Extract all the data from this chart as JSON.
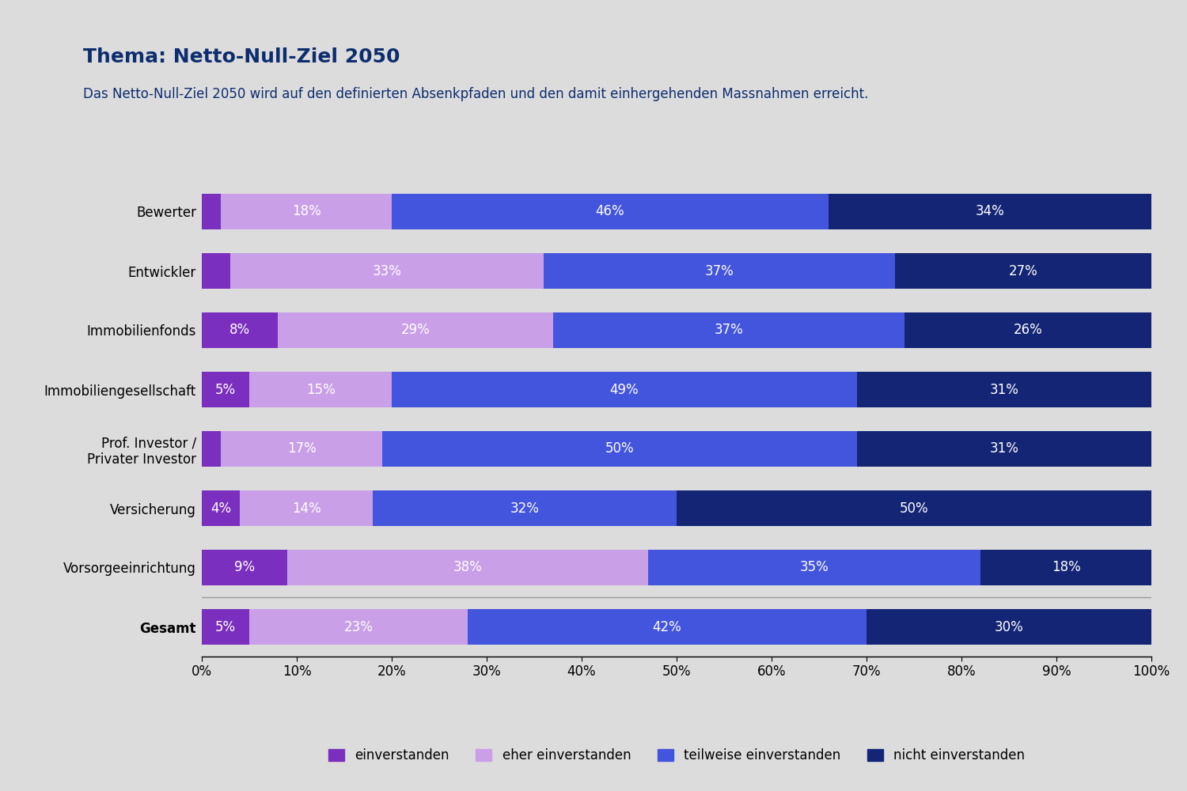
{
  "title": "Thema: Netto-Null-Ziel 2050",
  "subtitle": "Das Netto-Null-Ziel 2050 wird auf den definierten Absenkpfaden und den damit einhergehenden Massnahmen erreicht.",
  "title_color": "#0d2d6e",
  "subtitle_color": "#0d2d6e",
  "background_color": "#dcdcdc",
  "categories": [
    "Bewerter",
    "Entwickler",
    "Immobilienfonds",
    "Immobiliengesellschaft",
    "Prof. Investor /\nPrivater Investor",
    "Versicherung",
    "Vorsorgeeinrichtung",
    "Gesamt"
  ],
  "data": [
    [
      2,
      18,
      46,
      34
    ],
    [
      3,
      33,
      37,
      27
    ],
    [
      8,
      29,
      37,
      26
    ],
    [
      5,
      15,
      49,
      31
    ],
    [
      2,
      17,
      50,
      31
    ],
    [
      4,
      14,
      32,
      50
    ],
    [
      9,
      38,
      35,
      18
    ],
    [
      5,
      23,
      42,
      30
    ]
  ],
  "colors": [
    "#7b2fbe",
    "#c9a0e8",
    "#4455dd",
    "#152575"
  ],
  "legend_labels": [
    "einverstanden",
    "eher einverstanden",
    "teilweise einverstanden",
    "nicht einverstanden"
  ],
  "bar_height": 0.6,
  "xlim": [
    0,
    100
  ],
  "xticks": [
    0,
    10,
    20,
    30,
    40,
    50,
    60,
    70,
    80,
    90,
    100
  ],
  "text_color_inside": "#ffffff",
  "fontsize_bar_label": 12,
  "fontsize_category": 12,
  "fontsize_title": 18,
  "fontsize_subtitle": 12,
  "fontsize_legend": 12,
  "fontsize_tick": 12
}
